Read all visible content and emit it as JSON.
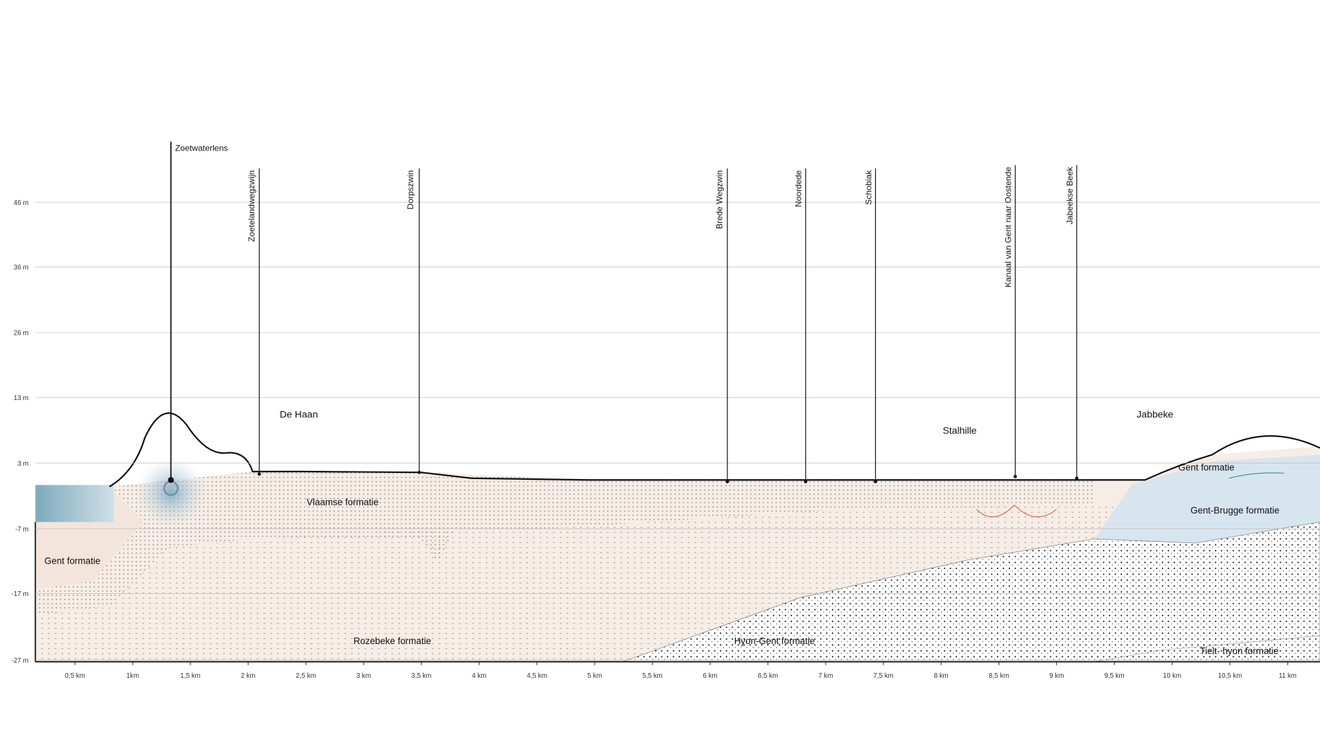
{
  "y_axis": {
    "labels": [
      "46 m",
      "36 m",
      "26 m",
      "13 m",
      "3 m",
      "-7 m",
      "-17 m",
      "-27 m"
    ]
  },
  "x_axis": {
    "labels": [
      "0,5 km",
      "1km",
      "1,5 km",
      "2 km",
      "2,5 km",
      "3 km",
      "3,5 km",
      "4 km",
      "4,5 km",
      "5 km",
      "5,5 km",
      "6 km",
      "6,5 km",
      "7 km",
      "7,5 km",
      "8 km",
      "8,5 km",
      "9 km",
      "9,5 km",
      "10 km",
      "10,5 km",
      "11 km"
    ]
  },
  "annotations": [
    "Zoetwaterlens",
    "Zoetelandwegzwijn",
    "Dorpszwin",
    "Brede Wegzwin",
    "Noordede",
    "Schobiak",
    "Kanaal van Gent naar Oostende",
    "Jabeekse Beek"
  ],
  "places": [
    "De Haan",
    "Stalhille",
    "Jabbeke"
  ],
  "formations": [
    "Vlaamse formatie",
    "Gent formatie",
    "Rozebeke formatie",
    "Hyon-Gent formatie",
    "Gent formatie",
    "Gent-Brugge formatie",
    "Tielt- hyon formatie"
  ]
}
